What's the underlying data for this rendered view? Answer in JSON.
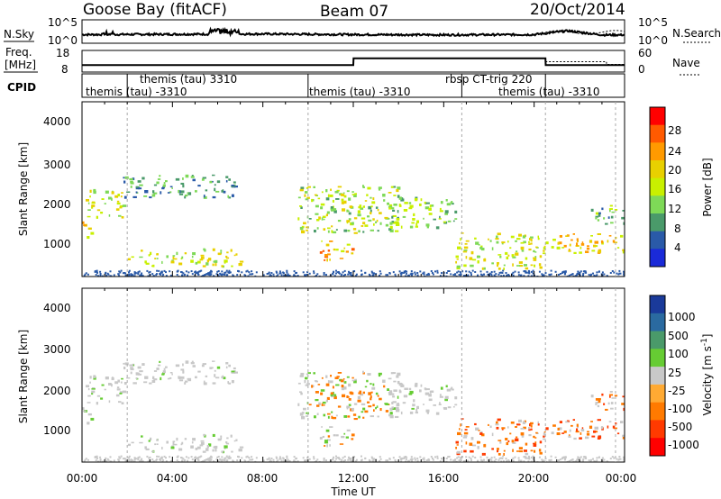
{
  "header": {
    "station": "Goose Bay (fitACF)",
    "beam": "Beam 07",
    "date": "20/Oct/2014"
  },
  "noise_panel": {
    "left_label": "N.Sky",
    "right_label": "N.Search",
    "left_ticks": [
      "10^5",
      "10^0"
    ],
    "right_ticks": [
      "10^5",
      "10^0"
    ]
  },
  "freq_panel": {
    "left_label_1": "Freq.",
    "left_label_2": "[MHz]",
    "left_ticks": [
      "18",
      "8"
    ],
    "right_label": "Nave",
    "right_ticks": [
      "60",
      "0"
    ]
  },
  "cpid_panel": {
    "label": "CPID",
    "entries": [
      {
        "text": "themis (tau) -3310",
        "start_hour": 0.0
      },
      {
        "text": "themis (tau) 3310",
        "start_hour": 2.0
      },
      {
        "text": "themis (tau) -3310",
        "start_hour": 10.0
      },
      {
        "text": "rbsp CT-trig 220",
        "start_hour": 16.8
      },
      {
        "text": "themis (tau) -3310",
        "start_hour": 20.5
      }
    ]
  },
  "range_axis": {
    "label": "Slant Range [km]",
    "ticks": [
      "4000",
      "3000",
      "2000",
      "1000"
    ]
  },
  "power_scale": {
    "label": "Power [dB]",
    "ticks": [
      "28",
      "24",
      "20",
      "16",
      "12",
      "8",
      "4"
    ],
    "colors": [
      "#ff0000",
      "#ff5a00",
      "#ff9a00",
      "#e8d000",
      "#c8f000",
      "#7ed957",
      "#4a9a6a",
      "#2a5aa8",
      "#1a2ad8"
    ]
  },
  "velocity_scale": {
    "label": "Velocity [m s",
    "label_sup": "-1",
    "label_end": "]",
    "ticks": [
      "1000",
      "500",
      "100",
      "25",
      "-25",
      "-100",
      "-500",
      "-1000"
    ],
    "colors": [
      "#1a3a9a",
      "#2a6aa0",
      "#4a9a6a",
      "#66cc33",
      "#c8c8c8",
      "#ffaa33",
      "#ff7a00",
      "#ff3a00",
      "#ff0000"
    ]
  },
  "time_axis": {
    "label": "Time UT",
    "ticks": [
      "00:00",
      "04:00",
      "08:00",
      "12:00",
      "16:00",
      "20:00",
      "00:00"
    ]
  },
  "chart_data": {
    "type": "heatmap",
    "title": "Goose Bay (fitACF) Beam 07 20/Oct/2014",
    "xlabel": "Time UT",
    "ylabel": "Slant Range [km]",
    "xlim_hours": [
      0,
      24
    ],
    "ylim_km": [
      180,
      4600
    ],
    "nsky_level_log": [
      {
        "t": 0,
        "v": 1.6
      },
      {
        "t": 4,
        "v": 1.7
      },
      {
        "t": 8,
        "v": 1.8
      },
      {
        "t": 12,
        "v": 1.6
      },
      {
        "t": 16,
        "v": 1.5
      },
      {
        "t": 20,
        "v": 1.6
      },
      {
        "t": 21.5,
        "v": 2.8
      },
      {
        "t": 23,
        "v": 1.5
      }
    ],
    "freq_mhz": [
      {
        "t": 0,
        "v": 10.5
      },
      {
        "t": 12,
        "v": 10.5
      },
      {
        "t": 12.01,
        "v": 15.5
      },
      {
        "t": 20.5,
        "v": 15.5
      },
      {
        "t": 20.51,
        "v": 10.5
      },
      {
        "t": 24,
        "v": 10.5
      }
    ],
    "power_regions": [
      {
        "t0": 0.0,
        "t1": 1.8,
        "r0": 1700,
        "r1": 2400,
        "level": 16
      },
      {
        "t0": 0.0,
        "t1": 0.5,
        "r0": 1200,
        "r1": 1600,
        "level": 20
      },
      {
        "t0": 1.8,
        "t1": 6.8,
        "r0": 2200,
        "r1": 2800,
        "level": 8
      },
      {
        "t0": 2.0,
        "t1": 7.0,
        "r0": 450,
        "r1": 900,
        "level": 16
      },
      {
        "t0": 9.5,
        "t1": 14.0,
        "r0": 1300,
        "r1": 2500,
        "level": 14
      },
      {
        "t0": 10.5,
        "t1": 12.0,
        "r0": 600,
        "r1": 1100,
        "level": 22
      },
      {
        "t0": 13.5,
        "t1": 16.5,
        "r0": 1400,
        "r1": 2200,
        "level": 12
      },
      {
        "t0": 16.5,
        "t1": 20.5,
        "r0": 400,
        "r1": 1300,
        "level": 16
      },
      {
        "t0": 20.5,
        "t1": 24.0,
        "r0": 800,
        "r1": 1300,
        "level": 20
      },
      {
        "t0": 22.5,
        "t1": 24.0,
        "r0": 1500,
        "r1": 2000,
        "level": 10
      }
    ]
  }
}
